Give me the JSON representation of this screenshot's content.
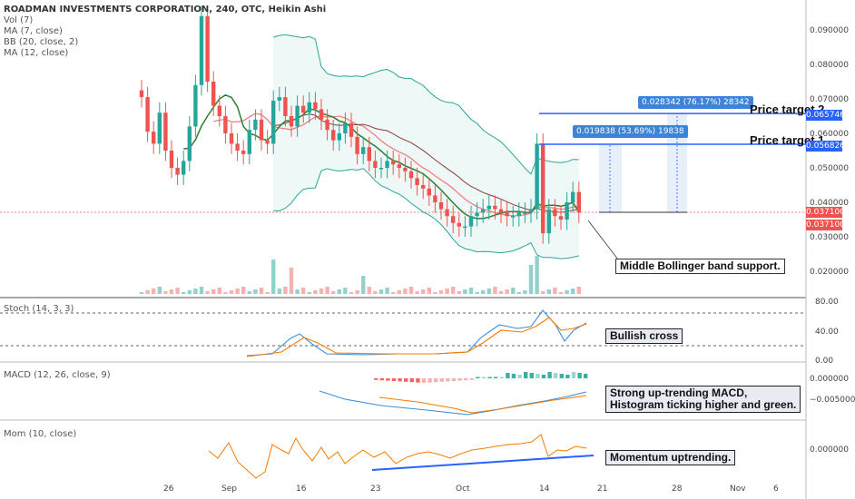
{
  "legend": {
    "title": "ROADMAN INVESTMENTS CORPORATION, 240, OTC, Heikin Ashi",
    "lines": [
      "Vol (7)",
      "MA (7, close)",
      "BB (20, close, 2)",
      "MA (12, close)"
    ]
  },
  "panes": {
    "stoch": "Stoch (14, 3, 3)",
    "macd": "MACD (12, 26, close, 9)",
    "mom": "Mom (10, close)"
  },
  "annotations": {
    "support": "Middle Bollinger band support.",
    "bullish": "Bullish cross",
    "macd_line1": "Strong up-trending MACD,",
    "macd_line2": "Histogram ticking higher and green.",
    "momentum": "Momentum uptrending.",
    "target1": "Price target 1",
    "target2": "Price target 2",
    "measure1": "0.019838 (53.69%) 19838",
    "measure2": "0.028342 (76.17%) 28342"
  },
  "price_tags": {
    "target2": "0.065746",
    "target1": "0.056826",
    "last_a": "0.037100",
    "last_b": "0.037100"
  },
  "colors": {
    "up": "#26a69a",
    "down": "#ef5350",
    "bb": "#26a69a",
    "ma_fast": "#2e7d32",
    "ma_slow": "#f08080",
    "ma_mid": "#8b3a3a",
    "blue": "#2962ff",
    "orange": "#f57c00",
    "stoch_k": "#3c8fd8"
  },
  "chart_data": {
    "type": "candlestick",
    "x_ticks": [
      "26",
      "Sep",
      "16",
      "23",
      "Oct",
      "14",
      "21",
      "28",
      "Nov",
      "6"
    ],
    "y_ticks": [
      "0.090000",
      "0.080000",
      "0.070000",
      "0.060000",
      "0.050000",
      "0.040000",
      "0.030000",
      "0.020000"
    ],
    "stoch_ticks": [
      "80.00",
      "40.00",
      "0.00"
    ],
    "macd_ticks": [
      "0.000000",
      "−0.005000"
    ],
    "mom_ticks": [
      "0.000000"
    ],
    "closes": [
      0.0705,
      0.0605,
      0.057,
      0.066,
      0.055,
      0.05,
      0.048,
      0.052,
      0.062,
      0.074,
      0.094,
      0.075,
      0.068,
      0.065,
      0.06,
      0.057,
      0.055,
      0.054,
      0.061,
      0.064,
      0.058,
      0.057,
      0.0695,
      0.0705,
      0.065,
      0.062,
      0.068,
      0.066,
      0.069,
      0.067,
      0.064,
      0.061,
      0.058,
      0.06,
      0.063,
      0.059,
      0.054,
      0.056,
      0.052,
      0.05,
      0.05,
      0.052,
      0.051,
      0.05,
      0.049,
      0.047,
      0.045,
      0.044,
      0.042,
      0.04,
      0.038,
      0.036,
      0.034,
      0.033,
      0.033,
      0.036,
      0.037,
      0.038,
      0.039,
      0.038,
      0.037,
      0.036,
      0.036,
      0.037,
      0.037,
      0.038,
      0.057,
      0.031,
      0.038,
      0.036,
      0.035,
      0.04,
      0.043,
      0.037
    ]
  }
}
